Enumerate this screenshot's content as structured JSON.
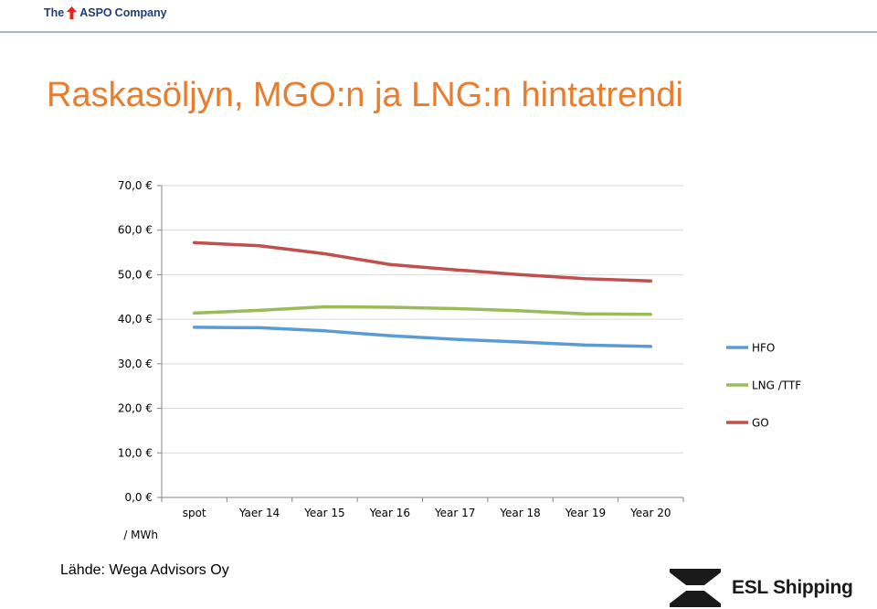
{
  "header": {
    "logo_pre": "The",
    "logo_brand": "ASPO",
    "logo_post": "Company"
  },
  "title": "Raskasöljyn, MGO:n ja LNG:n hintatrendi",
  "source": "Lähde: Wega Advisors Oy",
  "footer": {
    "company": "ESL Shipping"
  },
  "colors": {
    "title": "#e77d2e",
    "hfo": "#5b9bd5",
    "lng": "#9bbb59",
    "go": "#c0504d",
    "grid": "#d9d9d9",
    "axis": "#868686"
  },
  "chart_data": {
    "type": "line",
    "categories": [
      "spot",
      "Yaer 14",
      "Year 15",
      "Year 16",
      "Year 17",
      "Year 18",
      "Year 19",
      "Year 20"
    ],
    "ytick_labels": [
      "0,0 €",
      "10,0 €",
      "20,0 €",
      "30,0 €",
      "40,0 €",
      "50,0 €",
      "60,0 €",
      "70,0 €"
    ],
    "ylabel": "/ MWh",
    "ylim": [
      0,
      70
    ],
    "grid": true,
    "legend_position": "right",
    "series": [
      {
        "name": "HFO",
        "color": "#5b9bd5",
        "values": [
          38.2,
          38.1,
          37.4,
          36.3,
          35.5,
          34.9,
          34.2,
          33.9
        ]
      },
      {
        "name": "LNG /TTF",
        "color": "#9bbb59",
        "values": [
          41.4,
          42.0,
          42.8,
          42.7,
          42.4,
          41.9,
          41.2,
          41.1
        ]
      },
      {
        "name": "GO",
        "color": "#c0504d",
        "values": [
          57.2,
          56.5,
          54.7,
          52.3,
          51.1,
          50.0,
          49.1,
          48.6
        ]
      }
    ]
  }
}
